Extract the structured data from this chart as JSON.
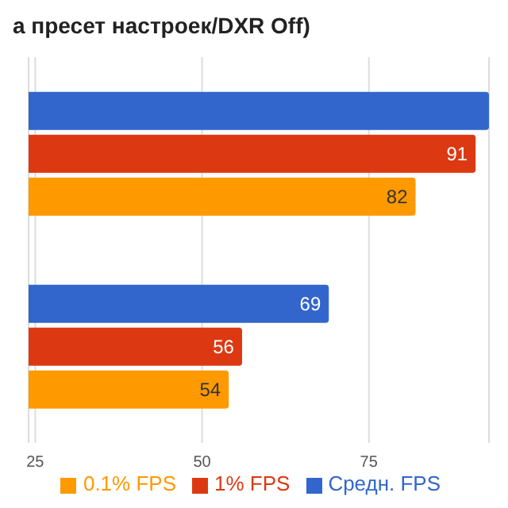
{
  "chart_data": {
    "type": "bar",
    "orientation": "horizontal",
    "title": "а пресет настроек/DXR Off)",
    "categories": [
      null,
      null
    ],
    "series": [
      {
        "name": "Средн. FPS",
        "color": "#3366cc",
        "values": [
          93,
          69
        ],
        "value_labels": [
          null,
          "69"
        ]
      },
      {
        "name": "1% FPS",
        "color": "#dc3912",
        "values": [
          91,
          56
        ],
        "value_labels": [
          "91",
          "56"
        ]
      },
      {
        "name": "0.1% FPS",
        "color": "#ff9900",
        "values": [
          82,
          54
        ],
        "value_labels": [
          "82",
          "54"
        ]
      }
    ],
    "xlim": [
      24,
      93
    ],
    "xticks": [
      25,
      50,
      75
    ],
    "grid": "x",
    "legend": "bottom"
  }
}
